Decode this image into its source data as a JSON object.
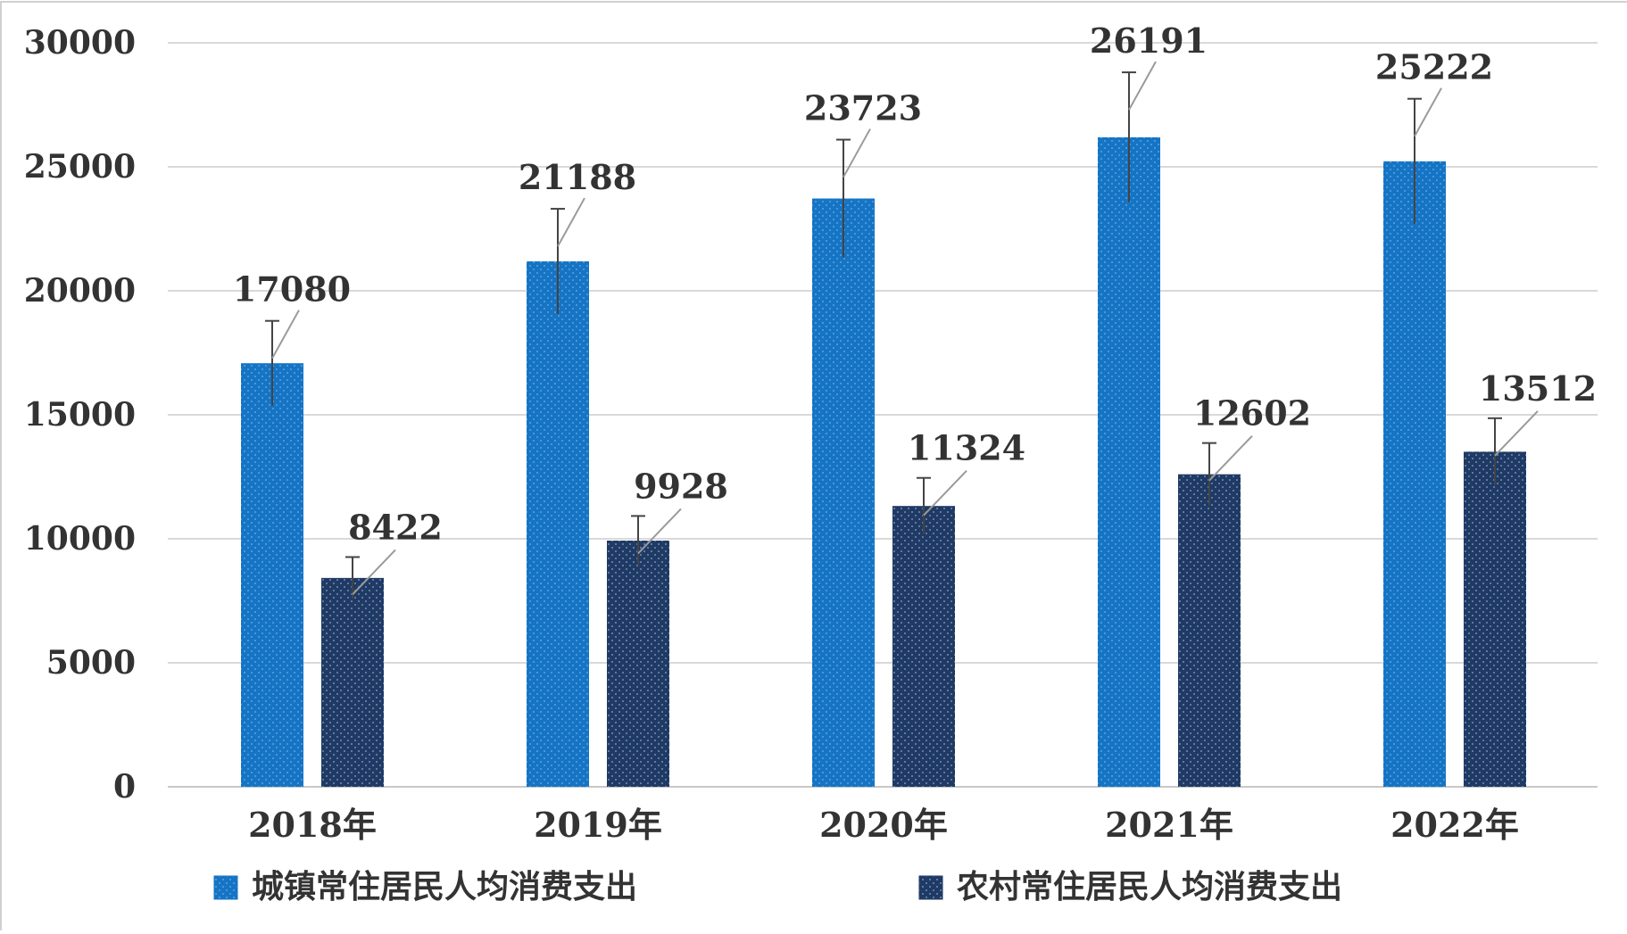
{
  "chart_data": {
    "type": "bar",
    "categories": [
      "2018年",
      "2019年",
      "2020年",
      "2021年",
      "2022年"
    ],
    "series": [
      {
        "name": "城镇常住居民人均消费支出",
        "values": [
          17080,
          21188,
          23723,
          26191,
          25222
        ],
        "color": "#1574c4",
        "pattern": "dotted"
      },
      {
        "name": "农村常住居民人均消费支出",
        "values": [
          8422,
          9928,
          11324,
          12602,
          13512
        ],
        "color": "#1f3a64",
        "pattern": "dotted"
      }
    ],
    "yticks": [
      "0",
      "5000",
      "10000",
      "15000",
      "20000",
      "25000",
      "30000"
    ],
    "ylim": [
      0,
      30000
    ],
    "grid": true,
    "error_bars": true,
    "legend_position": "bottom"
  }
}
